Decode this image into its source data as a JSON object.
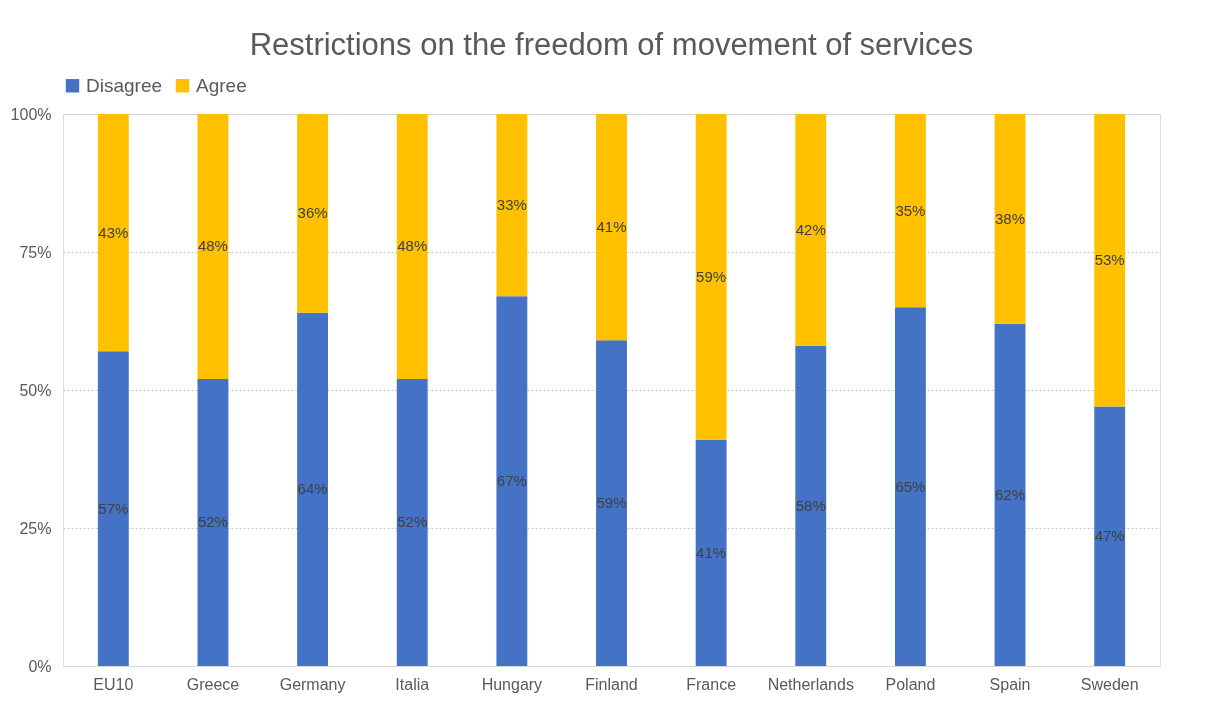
{
  "chart_data": {
    "type": "bar",
    "title": "Restrictions on the freedom of movement of services",
    "stacked": true,
    "categories": [
      "EU10",
      "Greece",
      "Germany",
      "Italia",
      "Hungary",
      "Finland",
      "France",
      "Netherlands",
      "Poland",
      "Spain",
      "Sweden"
    ],
    "series": [
      {
        "name": "Disagree",
        "color": "#4472c4",
        "values": [
          57,
          52,
          64,
          52,
          67,
          59,
          41,
          58,
          65,
          62,
          47
        ],
        "value_labels": [
          "57%",
          "52%",
          "64%",
          "52%",
          "67%",
          "59%",
          "41%",
          "58%",
          "65%",
          "62%",
          "47%"
        ]
      },
      {
        "name": "Agree",
        "color": "#ffc000",
        "values": [
          43,
          48,
          36,
          48,
          33,
          41,
          59,
          42,
          35,
          38,
          53
        ],
        "value_labels": [
          "43%",
          "48%",
          "36%",
          "48%",
          "33%",
          "41%",
          "59%",
          "42%",
          "35%",
          "38%",
          "53%"
        ]
      }
    ],
    "ylim": [
      0,
      100
    ],
    "yticks": [
      {
        "value": 0,
        "label": "0%"
      },
      {
        "value": 25,
        "label": "25%"
      },
      {
        "value": 50,
        "label": "50%"
      },
      {
        "value": 75,
        "label": "75%"
      },
      {
        "value": 100,
        "label": "100%"
      }
    ],
    "grid": "y",
    "legend": "top"
  }
}
